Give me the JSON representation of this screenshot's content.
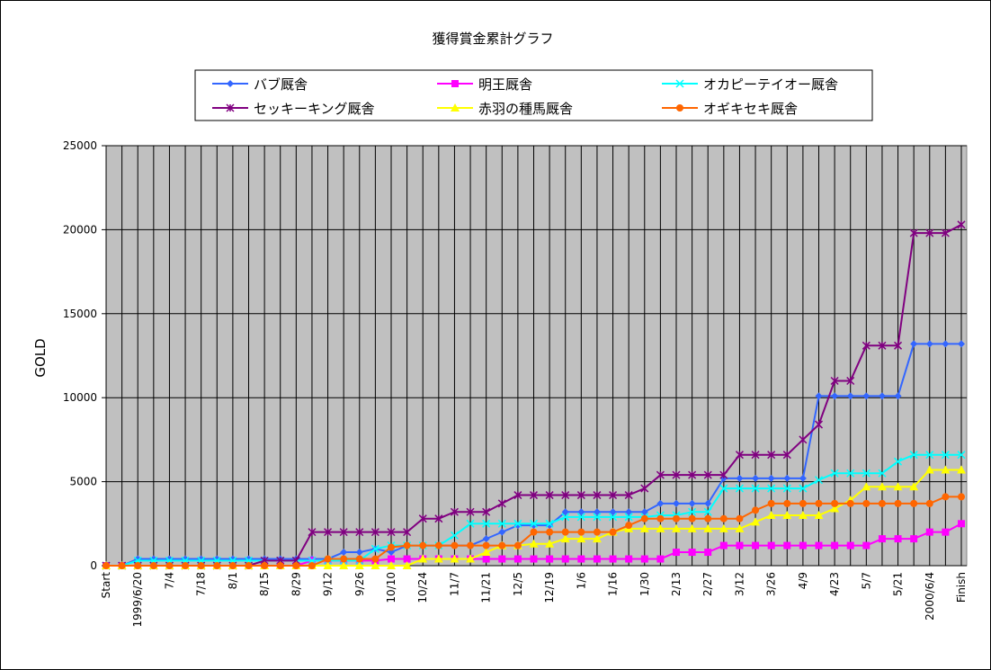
{
  "chart_data": {
    "type": "line",
    "title": "獲得賞金累計グラフ",
    "y_label": "GOLD",
    "categories": [
      "Start",
      null,
      "1999/6/20",
      null,
      "7/4",
      null,
      "7/18",
      null,
      "8/1",
      null,
      "8/15",
      null,
      "8/29",
      null,
      "9/12",
      null,
      "9/26",
      null,
      "10/10",
      null,
      "10/24",
      null,
      "11/7",
      null,
      "11/21",
      null,
      "12/5",
      null,
      "12/19",
      null,
      "1/6",
      null,
      "1/16",
      null,
      "1/30",
      null,
      "2/13",
      null,
      "2/27",
      null,
      "3/12",
      null,
      "3/26",
      null,
      "4/9",
      null,
      "4/23",
      null,
      "5/7",
      null,
      "5/21",
      null,
      "2000/6/4",
      null,
      "Finish"
    ],
    "ylim": [
      0,
      25000
    ],
    "yticks": [
      0,
      5000,
      10000,
      15000,
      20000,
      25000
    ],
    "grid": true,
    "series": [
      {
        "name": "バブ厩舎",
        "color": "#3366ff",
        "marker": "diamond",
        "values": [
          0,
          0,
          400,
          400,
          400,
          400,
          400,
          400,
          400,
          400,
          400,
          400,
          400,
          400,
          400,
          800,
          800,
          1000,
          800,
          1200,
          1200,
          1200,
          1200,
          1200,
          1600,
          2000,
          2400,
          2400,
          2400,
          3200,
          3200,
          3200,
          3200,
          3200,
          3200,
          3700,
          3700,
          3700,
          3700,
          5200,
          5200,
          5200,
          5200,
          5200,
          5200,
          10100,
          10100,
          10100,
          10100,
          10100,
          10100,
          13200,
          13200,
          13200,
          13200
        ]
      },
      {
        "name": "明王厩舎",
        "color": "#ff00ff",
        "marker": "square",
        "values": [
          0,
          0,
          0,
          0,
          0,
          0,
          0,
          0,
          0,
          0,
          0,
          0,
          0,
          300,
          300,
          300,
          300,
          300,
          400,
          400,
          400,
          400,
          400,
          400,
          400,
          400,
          400,
          400,
          400,
          400,
          400,
          400,
          400,
          400,
          400,
          400,
          800,
          800,
          800,
          1200,
          1200,
          1200,
          1200,
          1200,
          1200,
          1200,
          1200,
          1200,
          1200,
          1600,
          1600,
          1600,
          2000,
          2000,
          2500
        ]
      },
      {
        "name": "オカピーテイオー厩舎",
        "color": "#00ffff",
        "marker": "x",
        "values": [
          0,
          0,
          300,
          300,
          300,
          300,
          300,
          300,
          300,
          300,
          300,
          300,
          300,
          300,
          300,
          300,
          300,
          1000,
          1200,
          1200,
          1200,
          1200,
          1800,
          2500,
          2500,
          2500,
          2500,
          2500,
          2500,
          2900,
          2900,
          2900,
          2900,
          2900,
          2900,
          3000,
          3000,
          3200,
          3200,
          4600,
          4600,
          4600,
          4600,
          4600,
          4600,
          5100,
          5500,
          5500,
          5500,
          5500,
          6200,
          6600,
          6600,
          6600,
          6600
        ]
      },
      {
        "name": "セッキーキング厩舎",
        "color": "#800080",
        "marker": "star",
        "values": [
          0,
          0,
          0,
          0,
          0,
          0,
          0,
          0,
          0,
          0,
          300,
          300,
          300,
          2000,
          2000,
          2000,
          2000,
          2000,
          2000,
          2000,
          2800,
          2800,
          3200,
          3200,
          3200,
          3700,
          4200,
          4200,
          4200,
          4200,
          4200,
          4200,
          4200,
          4200,
          4600,
          5400,
          5400,
          5400,
          5400,
          5400,
          6600,
          6600,
          6600,
          6600,
          7500,
          8400,
          11000,
          11000,
          13100,
          13100,
          13100,
          19800,
          19800,
          19800,
          20300
        ]
      },
      {
        "name": "赤羽の種馬厩舎",
        "color": "#ffff00",
        "marker": "triangle",
        "values": [
          0,
          0,
          0,
          0,
          0,
          0,
          0,
          0,
          0,
          0,
          0,
          0,
          0,
          0,
          0,
          0,
          0,
          0,
          0,
          0,
          400,
          400,
          400,
          400,
          800,
          1200,
          1200,
          1300,
          1300,
          1600,
          1600,
          1600,
          2000,
          2200,
          2200,
          2200,
          2200,
          2200,
          2200,
          2200,
          2200,
          2600,
          3000,
          3000,
          3000,
          3000,
          3400,
          3900,
          4700,
          4700,
          4700,
          4700,
          5700,
          5700,
          5700
        ]
      },
      {
        "name": "オギキセキ厩舎",
        "color": "#ff6600",
        "marker": "circle",
        "values": [
          0,
          0,
          0,
          0,
          0,
          0,
          0,
          0,
          0,
          0,
          0,
          0,
          0,
          0,
          400,
          400,
          400,
          400,
          1100,
          1200,
          1200,
          1200,
          1200,
          1200,
          1200,
          1200,
          1200,
          2000,
          2000,
          2000,
          2000,
          2000,
          2000,
          2400,
          2800,
          2800,
          2800,
          2800,
          2800,
          2800,
          2800,
          3300,
          3700,
          3700,
          3700,
          3700,
          3700,
          3700,
          3700,
          3700,
          3700,
          3700,
          3700,
          4100,
          4100
        ]
      }
    ]
  }
}
